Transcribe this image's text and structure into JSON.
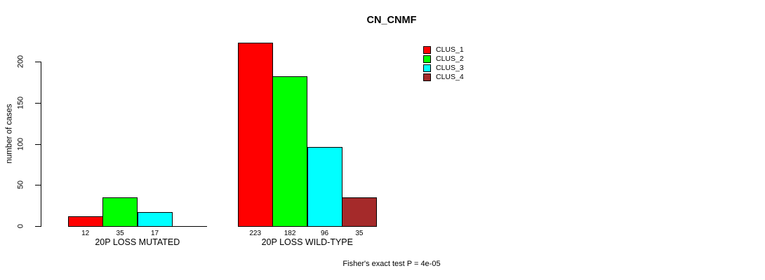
{
  "chart_data": {
    "type": "bar",
    "title": "CN_CNMF",
    "ylabel": "number of cases",
    "xlabel": "",
    "yticks": [
      0,
      50,
      100,
      150,
      200
    ],
    "ylim": [
      0,
      230
    ],
    "grid": false,
    "legend_position": "top-right",
    "categories": [
      "20P LOSS MUTATED",
      "20P LOSS WILD-TYPE"
    ],
    "series": [
      {
        "name": "CLUS_1",
        "color": "#ff0000",
        "values": [
          12,
          223
        ]
      },
      {
        "name": "CLUS_2",
        "color": "#00ff00",
        "values": [
          35,
          182
        ]
      },
      {
        "name": "CLUS_3",
        "color": "#00ffff",
        "values": [
          17,
          96
        ]
      },
      {
        "name": "CLUS_4",
        "color": "#a52a2a",
        "values": [
          0,
          35
        ]
      }
    ],
    "bar_value_labels": [
      [
        "12",
        "35",
        "17",
        ""
      ],
      [
        "223",
        "182",
        "96",
        "35"
      ]
    ],
    "annotation": "Fisher's exact test P = 4e-05",
    "colors": {
      "axis": "#000000",
      "background": "#ffffff",
      "bar_border": "#000000"
    }
  }
}
